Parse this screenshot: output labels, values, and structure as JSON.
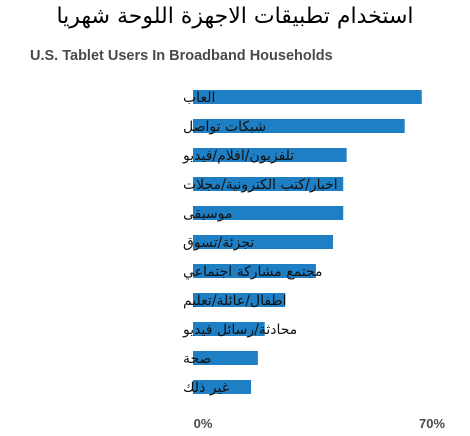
{
  "chart_data": {
    "type": "bar",
    "orientation": "horizontal",
    "title": "استخدام تطبيقات الاجهزة اللوحة شهريا",
    "subtitle": "U.S. Tablet Users In Broadband Households",
    "categories": [
      "العاب",
      "شبكات تواصل",
      "تلفزيون/افلام/فيديو",
      "اخبار/كتب الكترونية/مجلات",
      "موسيقى",
      "تجزئة/تسوق",
      "مجتمع مشاركة اجتماعي",
      "اطفال/عائلة/تعليم",
      "محادثة/رسائل فيديو",
      "صحة",
      "غير ذلك"
    ],
    "values": [
      67,
      62,
      45,
      44,
      44,
      41,
      36,
      27,
      21,
      19,
      17
    ],
    "xlim": [
      0,
      70
    ],
    "x_ticks": [
      "0%",
      "70%"
    ],
    "bar_color": "#1f7fc4",
    "grid": false,
    "legend": "none"
  }
}
